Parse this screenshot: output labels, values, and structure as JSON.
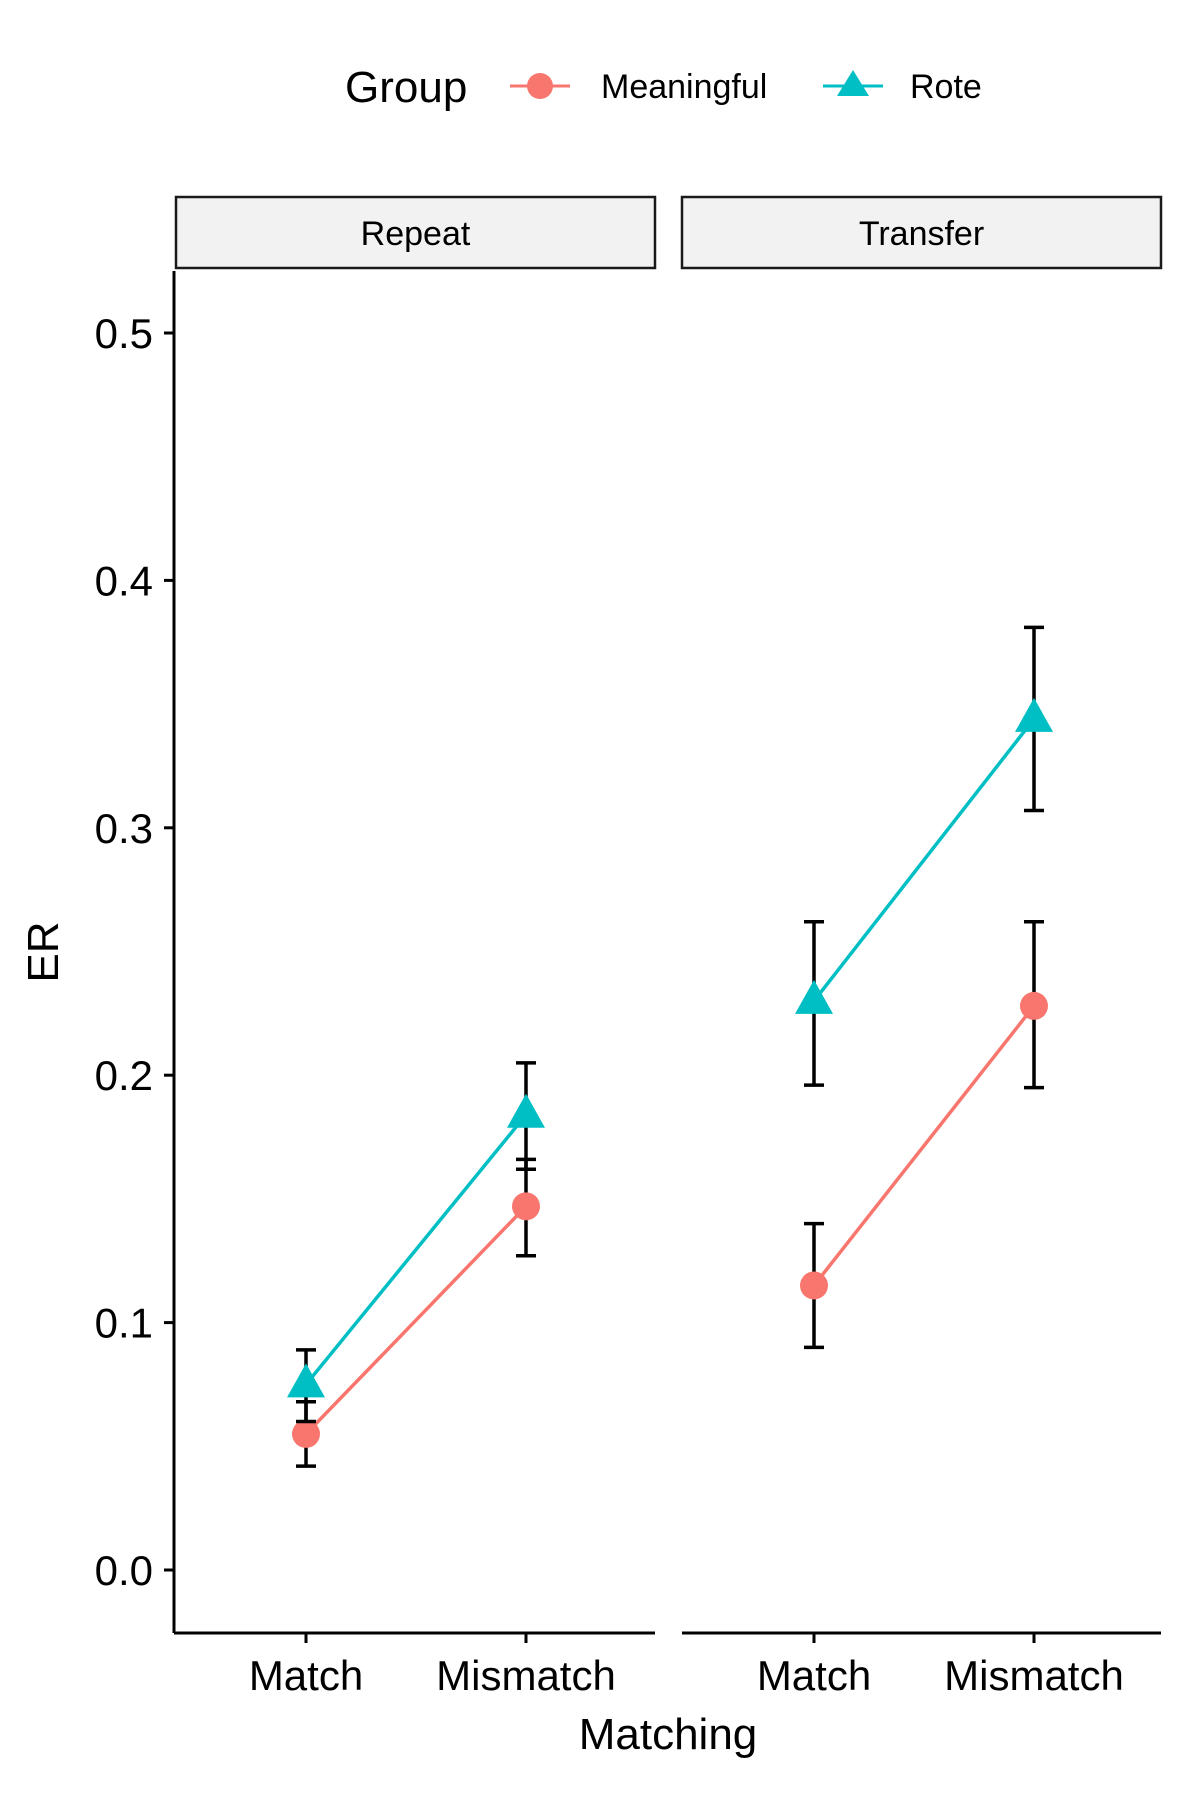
{
  "chart_data": {
    "type": "line",
    "facet_var": "",
    "facets": [
      "Repeat",
      "Transfer"
    ],
    "categories": [
      "Match",
      "Mismatch"
    ],
    "xlabel": "Matching",
    "ylabel": "ER",
    "ylim": [
      -0.02,
      0.52
    ],
    "yticks": [
      0.0,
      0.1,
      0.2,
      0.3,
      0.4,
      0.5
    ],
    "ytick_labels": [
      "0.0",
      "0.1",
      "0.2",
      "0.3",
      "0.4",
      "0.5"
    ],
    "legend": {
      "title": "Group",
      "position": "top"
    },
    "grid": false,
    "series": [
      {
        "name": "Meaningful",
        "color": "#F8766D",
        "marker": "circle",
        "panels": {
          "Repeat": {
            "values": [
              0.055,
              0.147
            ],
            "lower": [
              0.042,
              0.127
            ],
            "upper": [
              0.068,
              0.166
            ]
          },
          "Transfer": {
            "values": [
              0.115,
              0.228
            ],
            "lower": [
              0.09,
              0.195
            ],
            "upper": [
              0.14,
              0.262
            ]
          }
        }
      },
      {
        "name": "Rote",
        "color": "#00BFC4",
        "marker": "triangle",
        "panels": {
          "Repeat": {
            "values": [
              0.075,
              0.184
            ],
            "lower": [
              0.06,
              0.162
            ],
            "upper": [
              0.089,
              0.205
            ]
          },
          "Transfer": {
            "values": [
              0.23,
              0.344
            ],
            "lower": [
              0.196,
              0.307
            ],
            "upper": [
              0.262,
              0.381
            ]
          }
        }
      }
    ]
  }
}
